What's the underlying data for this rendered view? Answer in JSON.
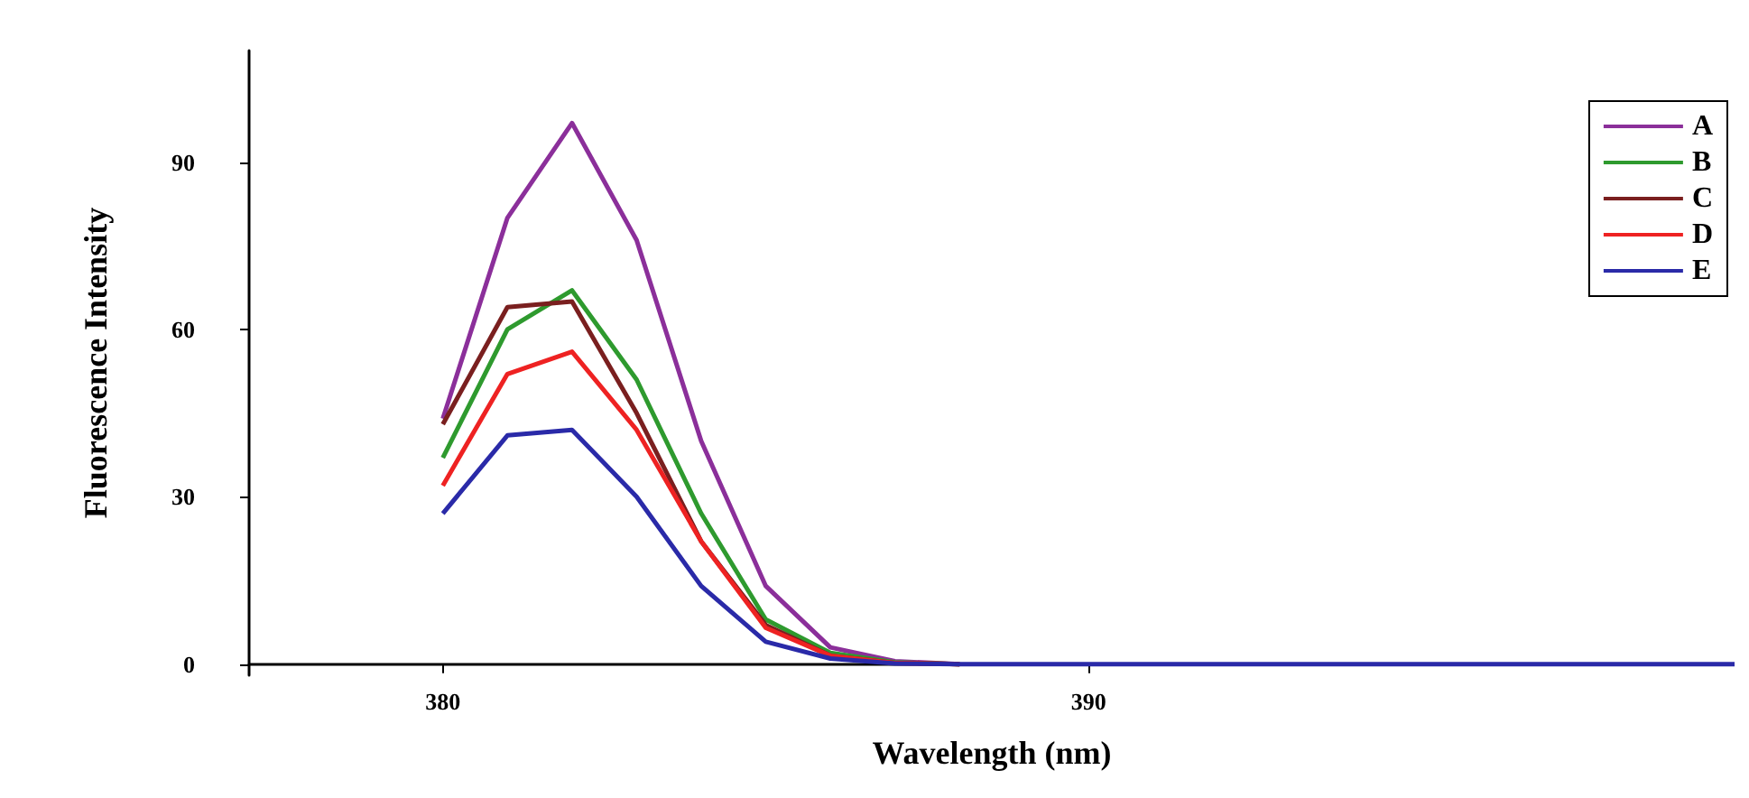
{
  "chart_data": {
    "type": "line",
    "xlabel": "Wavelength (nm)",
    "ylabel": "Fluorescence Intensity",
    "x": [
      380,
      381,
      382,
      383,
      384,
      385,
      386,
      387,
      388,
      390,
      395,
      400
    ],
    "series": [
      {
        "name": "A",
        "color": "#8b2f9a",
        "values": [
          44,
          80,
          97,
          76,
          40,
          14,
          3,
          0.5,
          0,
          null,
          null,
          null
        ]
      },
      {
        "name": "B",
        "color": "#2e9a2e",
        "values": [
          37,
          60,
          67,
          51,
          27,
          8,
          2,
          0.3,
          0,
          null,
          null,
          null
        ]
      },
      {
        "name": "C",
        "color": "#7a1f1f",
        "values": [
          43,
          64,
          65,
          45,
          22,
          7,
          1.5,
          0.2,
          0,
          null,
          null,
          null
        ]
      },
      {
        "name": "D",
        "color": "#ee2222",
        "values": [
          32,
          52,
          56,
          42,
          22,
          6.5,
          1.5,
          0.2,
          0,
          null,
          null,
          null
        ]
      },
      {
        "name": "E",
        "color": "#2a2aa8",
        "values": [
          27,
          41,
          42,
          30,
          14,
          4,
          1,
          0.1,
          0,
          0,
          0,
          0
        ]
      }
    ],
    "xlim": [
      377,
      400
    ],
    "xticks": [
      380,
      390
    ],
    "ylim": [
      -2,
      110
    ],
    "yticks": [
      0,
      30,
      60,
      90
    ],
    "grid": false,
    "legend": "top right",
    "marker": "none",
    "line_style": "solid"
  }
}
